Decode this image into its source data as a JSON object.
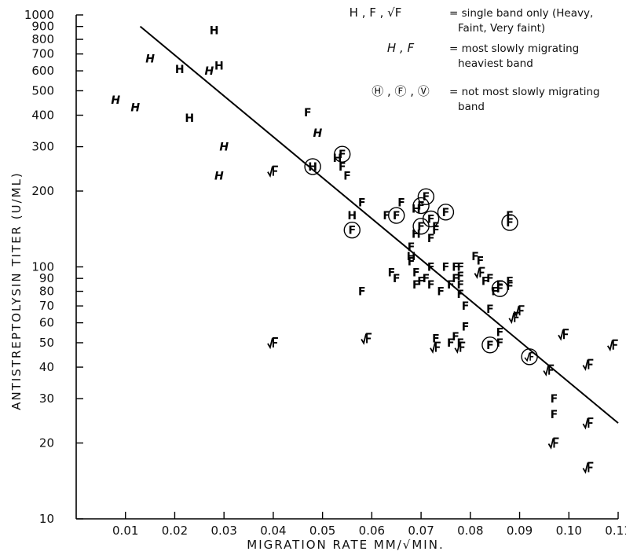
{
  "chart_data": {
    "type": "scatter",
    "xlabel": "MIGRATION RATE   MM/√MIN.",
    "ylabel": "ANTISTREPTOLYSIN  TITER  (U/ML)",
    "xlim": [
      0.0,
      0.11
    ],
    "ylim": [
      10,
      1000
    ],
    "y_scale": "log",
    "x_ticks": [
      "0.01",
      "0.02",
      "0.03",
      "0.04",
      "0.05",
      "0.06",
      "0.07",
      "0.08",
      "0.09",
      "0.10",
      "0.11"
    ],
    "y_ticks": [
      "10",
      "20",
      "30",
      "40",
      "50",
      "60",
      "70",
      "80",
      "90",
      "100",
      "200",
      "300",
      "400",
      "500",
      "600",
      "700",
      "800",
      "900",
      "1000"
    ],
    "grid": false,
    "legend_position": "top-right",
    "legend": [
      {
        "symbols": "H , F , √F",
        "text": [
          "= single band only (Heavy,",
          "Faint, Very faint)"
        ]
      },
      {
        "symbols": "H , F",
        "text": [
          "= most slowly migrating",
          "heaviest band"
        ]
      },
      {
        "symbols": "Ⓗ , Ⓕ , Ⓥ",
        "text": [
          "= not most slowly migrating",
          "band"
        ]
      }
    ],
    "regression_line": {
      "x": [
        0.013,
        0.11
      ],
      "y": [
        900,
        24
      ]
    },
    "series": [
      {
        "name": "H",
        "points": [
          [
            0.028,
            870
          ],
          [
            0.029,
            630
          ],
          [
            0.021,
            610
          ],
          [
            0.023,
            390
          ],
          [
            0.056,
            160
          ],
          [
            0.069,
            170
          ],
          [
            0.068,
            110
          ],
          [
            0.069,
            135
          ],
          [
            0.053,
            270
          ]
        ]
      },
      {
        "name": "H (italic)",
        "points": [
          [
            0.015,
            670
          ],
          [
            0.027,
            600
          ],
          [
            0.008,
            460
          ],
          [
            0.012,
            430
          ],
          [
            0.03,
            300
          ],
          [
            0.029,
            230
          ],
          [
            0.049,
            340
          ]
        ]
      },
      {
        "name": "F",
        "points": [
          [
            0.047,
            410
          ],
          [
            0.054,
            250
          ],
          [
            0.055,
            230
          ],
          [
            0.058,
            180
          ],
          [
            0.058,
            80
          ],
          [
            0.063,
            160
          ],
          [
            0.066,
            180
          ],
          [
            0.064,
            95
          ],
          [
            0.065,
            90
          ],
          [
            0.068,
            120
          ],
          [
            0.068,
            105
          ],
          [
            0.069,
            95
          ],
          [
            0.069,
            85
          ],
          [
            0.07,
            88
          ],
          [
            0.071,
            90
          ],
          [
            0.072,
            100
          ],
          [
            0.072,
            85
          ],
          [
            0.073,
            140
          ],
          [
            0.073,
            145
          ],
          [
            0.072,
            130
          ],
          [
            0.074,
            80
          ],
          [
            0.075,
            100
          ],
          [
            0.076,
            85
          ],
          [
            0.077,
            100
          ],
          [
            0.077,
            90
          ],
          [
            0.078,
            100
          ],
          [
            0.078,
            92
          ],
          [
            0.078,
            85
          ],
          [
            0.078,
            78
          ],
          [
            0.076,
            50
          ],
          [
            0.077,
            53
          ],
          [
            0.078,
            50
          ],
          [
            0.079,
            58
          ],
          [
            0.081,
            110
          ],
          [
            0.082,
            106
          ],
          [
            0.083,
            88
          ],
          [
            0.084,
            90
          ],
          [
            0.085,
            80
          ],
          [
            0.086,
            85
          ],
          [
            0.086,
            55
          ],
          [
            0.086,
            50
          ],
          [
            0.088,
            88
          ],
          [
            0.088,
            84
          ],
          [
            0.088,
            160
          ],
          [
            0.097,
            30
          ],
          [
            0.097,
            26
          ],
          [
            0.073,
            52
          ],
          [
            0.079,
            70
          ],
          [
            0.084,
            68
          ]
        ]
      },
      {
        "name": "Very faint",
        "points": [
          [
            0.04,
            240
          ],
          [
            0.04,
            50
          ],
          [
            0.059,
            52
          ],
          [
            0.073,
            48
          ],
          [
            0.078,
            48
          ],
          [
            0.089,
            63
          ],
          [
            0.09,
            67
          ],
          [
            0.096,
            39
          ],
          [
            0.097,
            20
          ],
          [
            0.099,
            54
          ],
          [
            0.104,
            41
          ],
          [
            0.104,
            24
          ],
          [
            0.104,
            16
          ],
          [
            0.109,
            49
          ],
          [
            0.082,
            95
          ]
        ]
      },
      {
        "name": "Circled H",
        "points": [
          [
            0.048,
            250
          ]
        ]
      },
      {
        "name": "Circled F",
        "points": [
          [
            0.054,
            280
          ],
          [
            0.056,
            140
          ],
          [
            0.065,
            160
          ],
          [
            0.07,
            175
          ],
          [
            0.07,
            145
          ],
          [
            0.071,
            190
          ],
          [
            0.072,
            155
          ],
          [
            0.075,
            165
          ],
          [
            0.084,
            49
          ],
          [
            0.086,
            82
          ],
          [
            0.088,
            150
          ]
        ]
      },
      {
        "name": "Circled very faint",
        "points": [
          [
            0.092,
            44
          ]
        ]
      }
    ]
  }
}
